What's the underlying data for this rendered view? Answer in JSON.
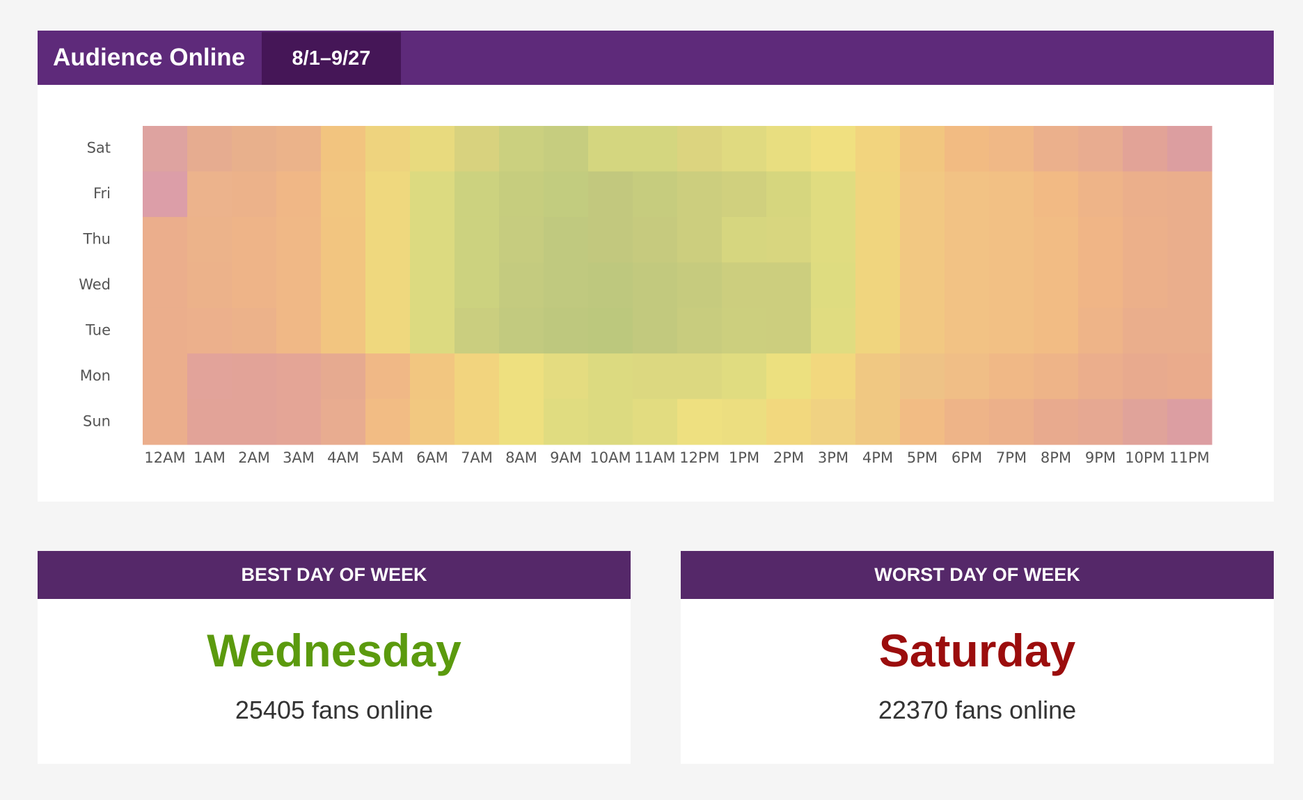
{
  "header": {
    "title": "Audience Online",
    "date_range": "8/1–9/27"
  },
  "heatmap": {
    "days": [
      "Sat",
      "Fri",
      "Thu",
      "Wed",
      "Tue",
      "Mon",
      "Sun"
    ],
    "hours": [
      "12AM",
      "1AM",
      "2AM",
      "3AM",
      "4AM",
      "5AM",
      "6AM",
      "7AM",
      "8AM",
      "9AM",
      "10AM",
      "11AM",
      "12PM",
      "1PM",
      "2PM",
      "3PM",
      "4PM",
      "5PM",
      "6PM",
      "7PM",
      "8PM",
      "9PM",
      "10PM",
      "11PM"
    ],
    "colors": [
      [
        "#dea3a0",
        "#e6ac90",
        "#e8b08c",
        "#ebb38a",
        "#f2c47f",
        "#eed37e",
        "#e8da7e",
        "#d8d27e",
        "#cbd07f",
        "#c6cd7f",
        "#d4d67f",
        "#d4d67f",
        "#dcd47f",
        "#e0da80",
        "#e8de80",
        "#f0e080",
        "#f2d47e",
        "#f2c67f",
        "#f2bb82",
        "#f0b886",
        "#ebb08c",
        "#e8ac90",
        "#e2a397",
        "#dc9ea0"
      ],
      [
        "#dc9ea8",
        "#ecb38c",
        "#ecb28a",
        "#f0b786",
        "#f2c680",
        "#efd87e",
        "#dcda80",
        "#ccd27f",
        "#c6cd7e",
        "#c2cc7f",
        "#c2c87e",
        "#c6cc7e",
        "#ccce7e",
        "#d0d07e",
        "#d6d67e",
        "#e0dc80",
        "#f0d57e",
        "#f2c882",
        "#f2c284",
        "#f2c084",
        "#f2ba84",
        "#eeb488",
        "#ebaf8b",
        "#eaae8c"
      ],
      [
        "#ebae8c",
        "#ecb38a",
        "#eeb488",
        "#f0b886",
        "#f2c580",
        "#efd87e",
        "#dcda80",
        "#ccd27f",
        "#c6cc7f",
        "#c0c97f",
        "#c2c87e",
        "#c6ca7e",
        "#ccce7e",
        "#d6d67f",
        "#d8d67f",
        "#e0dc80",
        "#f0d57e",
        "#f2c882",
        "#f2c284",
        "#f2c084",
        "#f2bc84",
        "#f0b586",
        "#ecb08a",
        "#eaae8c"
      ],
      [
        "#ebae8c",
        "#ecb28a",
        "#eeb488",
        "#f0b886",
        "#f2c580",
        "#efd87e",
        "#dcda80",
        "#ccd27f",
        "#c4cb7f",
        "#c0c97f",
        "#bec87e",
        "#c2c97e",
        "#c6cb7e",
        "#ccce7e",
        "#ccce7e",
        "#dedc80",
        "#f0d57e",
        "#f2c882",
        "#f2c284",
        "#f2c084",
        "#f2bc84",
        "#f0b586",
        "#ecb08a",
        "#eaae8c"
      ],
      [
        "#ebae8c",
        "#ecb08c",
        "#ecb28a",
        "#f0b886",
        "#f2c580",
        "#efd87e",
        "#dcda80",
        "#cace7f",
        "#c2ca7f",
        "#bec87e",
        "#bcc87d",
        "#c2c97e",
        "#c8cc7e",
        "#cccf7e",
        "#ccce7e",
        "#e0dc80",
        "#f0d57e",
        "#f2c882",
        "#f2c284",
        "#f2c084",
        "#f2bc84",
        "#eeb488",
        "#eaae8c",
        "#eaae8c"
      ],
      [
        "#ebae8c",
        "#e2a39a",
        "#e2a398",
        "#e4a596",
        "#e6aa90",
        "#f0b886",
        "#f2c680",
        "#f2d47e",
        "#eee07f",
        "#e4dc80",
        "#dcda80",
        "#dcd880",
        "#dcd880",
        "#e0dc80",
        "#ece07f",
        "#f2d87e",
        "#f0c882",
        "#eec286",
        "#f0be86",
        "#f0b886",
        "#eeb488",
        "#ebae8c",
        "#e8aa8e",
        "#eaab8c"
      ],
      [
        "#ebae8c",
        "#e2a398",
        "#e2a398",
        "#e4a596",
        "#e8ac90",
        "#f2bc84",
        "#f2c880",
        "#f2d47e",
        "#eee07f",
        "#e0dc80",
        "#dcda80",
        "#e2dc80",
        "#eee080",
        "#ecde80",
        "#f2d87e",
        "#f0d282",
        "#f0c882",
        "#f2bc84",
        "#eeb488",
        "#ecb08a",
        "#e8aa8e",
        "#e6a892",
        "#e0a39a",
        "#dc9ea2"
      ]
    ]
  },
  "cards": [
    {
      "heading": "BEST DAY OF WEEK",
      "day": "Wednesday",
      "fans": "25405 fans online",
      "day_color": "#5b9a0e"
    },
    {
      "heading": "WORST DAY OF WEEK",
      "day": "Saturday",
      "fans": "22370 fans online",
      "day_color": "#9b0d0d"
    }
  ]
}
